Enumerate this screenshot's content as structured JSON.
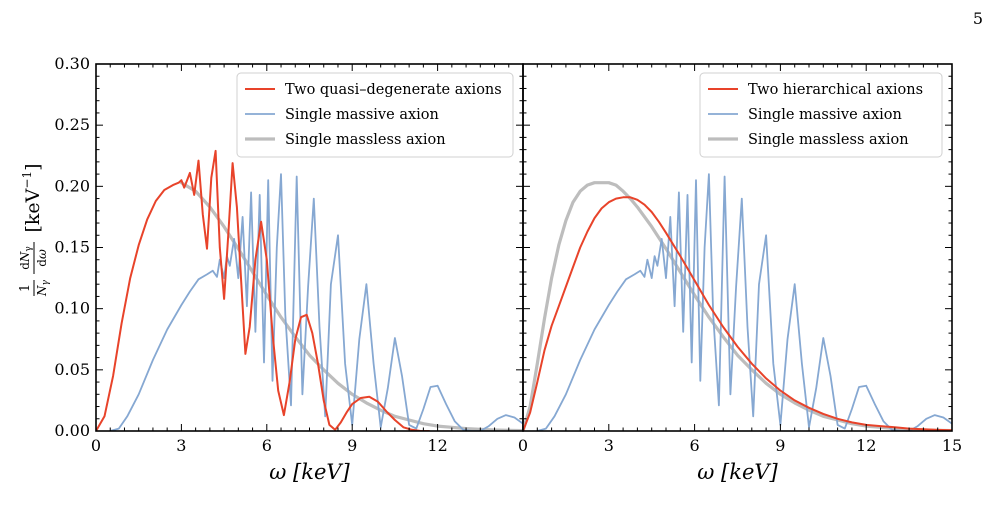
{
  "page": {
    "number": "5"
  },
  "chart_data": [
    {
      "type": "line",
      "panel": "left",
      "title": "",
      "xlabel": "ω [keV]",
      "ylabel": "1/N_γ dN_γ/dω [keV⁻¹]",
      "xlim": [
        0,
        15
      ],
      "ylim": [
        0,
        0.3
      ],
      "x_ticks": [
        0,
        3,
        6,
        9,
        12
      ],
      "x_tick_labels": [
        "0",
        "3",
        "6",
        "9",
        "12"
      ],
      "y_ticks": [
        0,
        0.05,
        0.1,
        0.15,
        0.2,
        0.25,
        0.3
      ],
      "y_tick_labels": [
        "0.00",
        "0.05",
        "0.10",
        "0.15",
        "0.20",
        "0.25",
        "0.30"
      ],
      "legend_position": "top-right",
      "series": [
        {
          "name": "Two quasi–degenerate axions",
          "color": "#e8432a",
          "x": [
            0,
            0.3,
            0.6,
            0.9,
            1.2,
            1.5,
            1.8,
            2.1,
            2.4,
            2.7,
            2.9,
            3.0,
            3.1,
            3.2,
            3.3,
            3.45,
            3.6,
            3.75,
            3.9,
            4.05,
            4.2,
            4.35,
            4.5,
            4.65,
            4.8,
            4.95,
            5.1,
            5.25,
            5.4,
            5.6,
            5.8,
            6.0,
            6.2,
            6.4,
            6.6,
            6.8,
            7.0,
            7.2,
            7.4,
            7.6,
            7.8,
            8.0,
            8.2,
            8.4,
            8.6,
            8.8,
            9.0,
            9.3,
            9.6,
            9.9,
            10.2,
            10.5,
            10.8,
            11.1,
            11.4,
            11.7
          ],
          "y": [
            0,
            0.012,
            0.045,
            0.088,
            0.125,
            0.152,
            0.173,
            0.188,
            0.197,
            0.201,
            0.203,
            0.205,
            0.199,
            0.205,
            0.211,
            0.193,
            0.221,
            0.177,
            0.149,
            0.207,
            0.229,
            0.15,
            0.108,
            0.162,
            0.219,
            0.183,
            0.122,
            0.063,
            0.085,
            0.14,
            0.171,
            0.14,
            0.08,
            0.033,
            0.013,
            0.04,
            0.075,
            0.093,
            0.095,
            0.08,
            0.055,
            0.025,
            0.005,
            0.001,
            0.007,
            0.015,
            0.022,
            0.027,
            0.028,
            0.024,
            0.016,
            0.009,
            0.003,
            0.001,
            0.0,
            0.0
          ]
        },
        {
          "name": "Single massive axion",
          "color": "#86a8d2",
          "x": [
            0.5,
            0.8,
            1.1,
            1.5,
            2.0,
            2.5,
            3.0,
            3.3,
            3.6,
            3.9,
            4.1,
            4.25,
            4.35,
            4.5,
            4.6,
            4.7,
            4.85,
            5.0,
            5.15,
            5.3,
            5.45,
            5.6,
            5.75,
            5.9,
            6.05,
            6.2,
            6.35,
            6.5,
            6.65,
            6.85,
            7.05,
            7.25,
            7.45,
            7.65,
            7.85,
            8.05,
            8.25,
            8.5,
            8.75,
            9.0,
            9.25,
            9.5,
            9.75,
            10.0,
            10.25,
            10.5,
            10.75,
            11.0,
            11.25,
            11.5,
            11.75,
            12.0,
            12.3,
            12.6,
            12.9,
            13.2,
            13.5,
            13.8,
            14.1,
            14.4,
            14.7,
            15.0
          ],
          "y": [
            0,
            0.002,
            0.012,
            0.03,
            0.058,
            0.083,
            0.103,
            0.114,
            0.124,
            0.128,
            0.131,
            0.126,
            0.14,
            0.125,
            0.143,
            0.135,
            0.157,
            0.125,
            0.175,
            0.102,
            0.195,
            0.081,
            0.193,
            0.056,
            0.205,
            0.041,
            0.15,
            0.21,
            0.095,
            0.021,
            0.208,
            0.03,
            0.118,
            0.19,
            0.085,
            0.012,
            0.12,
            0.16,
            0.055,
            0.005,
            0.075,
            0.12,
            0.055,
            0.003,
            0.035,
            0.076,
            0.045,
            0.005,
            0.002,
            0.018,
            0.036,
            0.037,
            0.022,
            0.008,
            0.001,
            0.0,
            0.0,
            0.004,
            0.01,
            0.013,
            0.011,
            0.006
          ]
        },
        {
          "name": "Single massless axion",
          "color": "#bdbdbd",
          "x": [
            3.0,
            3.5,
            4.0,
            4.5,
            5.0,
            5.5,
            6.0,
            6.5,
            7.0,
            7.5,
            8.0,
            8.5,
            9.0,
            9.5,
            10.0,
            10.5,
            11.0,
            11.5,
            12.0,
            12.5,
            13.0,
            13.5,
            14.0,
            14.5,
            15.0
          ],
          "y": [
            0.203,
            0.196,
            0.183,
            0.167,
            0.149,
            0.13,
            0.111,
            0.093,
            0.077,
            0.062,
            0.05,
            0.039,
            0.03,
            0.023,
            0.017,
            0.012,
            0.009,
            0.006,
            0.004,
            0.003,
            0.002,
            0.0013,
            0.0008,
            0.0005,
            0.0003
          ]
        }
      ]
    },
    {
      "type": "line",
      "panel": "right",
      "title": "",
      "xlabel": "ω [keV]",
      "ylabel": "",
      "xlim": [
        0,
        15
      ],
      "ylim": [
        0,
        0.3
      ],
      "x_ticks": [
        0,
        3,
        6,
        9,
        12,
        15
      ],
      "x_tick_labels": [
        "0",
        "3",
        "6",
        "9",
        "12",
        "15"
      ],
      "legend_position": "top-right",
      "series": [
        {
          "name": "Two hierarchical axions",
          "color": "#e8432a",
          "x": [
            0,
            0.25,
            0.5,
            0.75,
            1.0,
            1.25,
            1.5,
            1.75,
            2.0,
            2.25,
            2.5,
            2.75,
            3.0,
            3.25,
            3.5,
            3.75,
            4.0,
            4.25,
            4.5,
            4.75,
            5.0,
            5.5,
            6.0,
            6.5,
            7.0,
            7.5,
            8.0,
            8.5,
            9.0,
            9.5,
            10.0,
            10.5,
            11.0,
            11.5,
            12.0,
            12.5,
            13.0,
            13.5,
            14.0,
            14.5,
            15.0
          ],
          "y": [
            0,
            0.015,
            0.04,
            0.066,
            0.086,
            0.102,
            0.118,
            0.134,
            0.15,
            0.163,
            0.174,
            0.182,
            0.187,
            0.19,
            0.191,
            0.191,
            0.189,
            0.185,
            0.179,
            0.171,
            0.162,
            0.143,
            0.123,
            0.103,
            0.085,
            0.069,
            0.055,
            0.043,
            0.033,
            0.025,
            0.019,
            0.014,
            0.01,
            0.007,
            0.005,
            0.004,
            0.003,
            0.002,
            0.0014,
            0.0009,
            0.0006
          ]
        },
        {
          "name": "Single massive axion",
          "color": "#86a8d2",
          "x": [
            0.5,
            0.8,
            1.1,
            1.5,
            2.0,
            2.5,
            3.0,
            3.3,
            3.6,
            3.9,
            4.1,
            4.25,
            4.35,
            4.5,
            4.6,
            4.7,
            4.85,
            5.0,
            5.15,
            5.3,
            5.45,
            5.6,
            5.75,
            5.9,
            6.05,
            6.2,
            6.35,
            6.5,
            6.65,
            6.85,
            7.05,
            7.25,
            7.45,
            7.65,
            7.85,
            8.05,
            8.25,
            8.5,
            8.75,
            9.0,
            9.25,
            9.5,
            9.75,
            10.0,
            10.25,
            10.5,
            10.75,
            11.0,
            11.25,
            11.5,
            11.75,
            12.0,
            12.3,
            12.6,
            12.9,
            13.2,
            13.5,
            13.8,
            14.1,
            14.4,
            14.7,
            15.0
          ],
          "y": [
            0,
            0.002,
            0.012,
            0.03,
            0.058,
            0.083,
            0.103,
            0.114,
            0.124,
            0.128,
            0.131,
            0.126,
            0.14,
            0.125,
            0.143,
            0.135,
            0.157,
            0.125,
            0.175,
            0.102,
            0.195,
            0.081,
            0.193,
            0.056,
            0.205,
            0.041,
            0.15,
            0.21,
            0.095,
            0.021,
            0.208,
            0.03,
            0.118,
            0.19,
            0.085,
            0.012,
            0.12,
            0.16,
            0.055,
            0.005,
            0.075,
            0.12,
            0.055,
            0.003,
            0.035,
            0.076,
            0.045,
            0.005,
            0.002,
            0.018,
            0.036,
            0.037,
            0.022,
            0.008,
            0.001,
            0.0,
            0.0,
            0.004,
            0.01,
            0.013,
            0.011,
            0.006
          ]
        },
        {
          "name": "Single massless axion",
          "color": "#bdbdbd",
          "x": [
            0,
            0.25,
            0.5,
            0.75,
            1.0,
            1.25,
            1.5,
            1.75,
            2.0,
            2.25,
            2.5,
            2.75,
            3.0,
            3.25,
            3.5,
            3.75,
            4.0,
            4.5,
            5.0,
            5.5,
            6.0,
            6.5,
            7.0,
            7.5,
            8.0,
            8.5,
            9.0,
            9.5,
            10.0,
            10.5,
            11.0,
            11.5,
            12.0,
            12.5,
            13.0,
            13.5,
            14.0,
            14.5,
            15.0
          ],
          "y": [
            0,
            0.02,
            0.055,
            0.092,
            0.125,
            0.152,
            0.172,
            0.187,
            0.196,
            0.201,
            0.203,
            0.203,
            0.203,
            0.201,
            0.196,
            0.19,
            0.183,
            0.167,
            0.149,
            0.13,
            0.111,
            0.093,
            0.077,
            0.062,
            0.05,
            0.039,
            0.03,
            0.023,
            0.017,
            0.012,
            0.009,
            0.006,
            0.004,
            0.003,
            0.002,
            0.0013,
            0.0008,
            0.0005,
            0.0003
          ]
        }
      ]
    }
  ]
}
